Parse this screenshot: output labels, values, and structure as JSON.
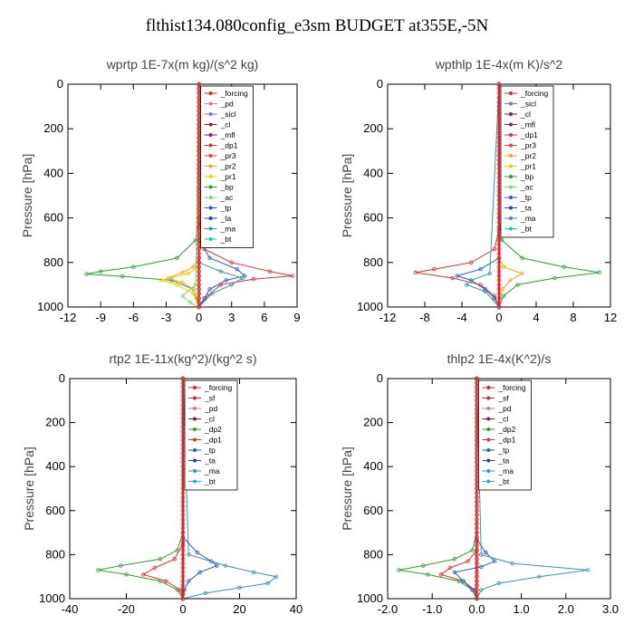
{
  "figure_title": "flthist134.080config_e3sm  BUDGET at355E,-5N",
  "colors": {
    "_forcing": "#d62728",
    "_pd": "#cc79a7",
    "_sicl": "#9467bd",
    "_cl": "#8b1a4a",
    "_mfl": "#7a1f6e",
    "_dp1": "#e03030",
    "_pr3": "#f03c3c",
    "_pr2": "#f5a623",
    "_pr1": "#e6d200",
    "_bp": "#2ca02c",
    "_ac": "#7cd66b",
    "_tp": "#1f5fbf",
    "_ta": "#1f3fbf",
    "_ma": "#3a8fb7",
    "_bt": "#17becf",
    "_sf": "#d62728",
    "_dp2": "#2ca02c"
  },
  "chart_data": [
    {
      "type": "line",
      "title": "wprtp   1E-7x(m kg)/(s^2 kg)",
      "ylabel": "Pressure [hPa]",
      "xlim": [
        -12,
        9
      ],
      "ylim": [
        1000,
        0
      ],
      "x_ticks": [
        "-12",
        "-9",
        "-6",
        "-3",
        "0",
        "3",
        "6",
        "9"
      ],
      "x_tick_values": [
        -12,
        -9,
        -6,
        -3,
        0,
        3,
        6,
        9
      ],
      "y_ticks": [
        "0",
        "200",
        "400",
        "600",
        "800",
        "1000"
      ],
      "y_tick_values": [
        0,
        200,
        400,
        600,
        800,
        1000
      ],
      "legend_position": "top-right",
      "legend": [
        "_forcing",
        "_pd",
        "_sicl",
        "_cl",
        "_mfl",
        "_dp1",
        "_pr3",
        "_pr2",
        "_pr1",
        "_bp",
        "_ac",
        "_tp",
        "_ta",
        "_ma",
        "_bt"
      ],
      "series": [
        {
          "name": "_bp",
          "p": [
            0,
            600,
            700,
            780,
            820,
            840,
            852,
            862,
            880,
            920,
            1000
          ],
          "x": [
            0,
            0,
            -0.3,
            -2,
            -6,
            -9,
            -10.3,
            -7,
            -2.5,
            -0.5,
            0
          ]
        },
        {
          "name": "_dp1",
          "p": [
            0,
            600,
            740,
            800,
            840,
            860,
            875,
            900,
            950,
            1000
          ],
          "x": [
            0,
            0,
            0.5,
            3,
            6.5,
            8.6,
            5,
            2,
            0.8,
            0
          ]
        },
        {
          "name": "_pr2",
          "p": [
            0,
            780,
            820,
            845,
            870,
            890,
            920,
            960,
            1000
          ],
          "x": [
            0,
            0,
            -0.5,
            -1.5,
            -2.8,
            -1.5,
            -0.5,
            -0.2,
            0
          ]
        },
        {
          "name": "_pr1",
          "p": [
            0,
            820,
            850,
            880,
            900,
            940,
            1000
          ],
          "x": [
            0,
            0,
            -1,
            -3.5,
            -2,
            -0.5,
            0
          ]
        },
        {
          "name": "_tp",
          "p": [
            0,
            700,
            780,
            830,
            860,
            880,
            920,
            960,
            1000
          ],
          "x": [
            0,
            0,
            1,
            3.5,
            4.2,
            2.5,
            1,
            0.5,
            0
          ]
        },
        {
          "name": "_ma",
          "p": [
            0,
            800,
            840,
            870,
            900,
            940,
            1000
          ],
          "x": [
            0,
            0,
            2,
            4,
            3,
            1.2,
            0
          ]
        },
        {
          "name": "_ac",
          "p": [
            0,
            900,
            950,
            980,
            1000
          ],
          "x": [
            0,
            -0.3,
            -1.5,
            -0.8,
            0
          ]
        },
        {
          "name": "_forcing",
          "p": [
            0,
            1000
          ],
          "x": [
            0,
            0
          ]
        }
      ]
    },
    {
      "type": "line",
      "title": "wpthlp   1E-4x(m K)/s^2",
      "ylabel": "Pressure [hPa]",
      "xlim": [
        -12,
        12
      ],
      "ylim": [
        1000,
        0
      ],
      "x_ticks": [
        "-12",
        "-8",
        "-4",
        "0",
        "4",
        "8",
        "12"
      ],
      "x_tick_values": [
        -12,
        -8,
        -4,
        0,
        4,
        8,
        12
      ],
      "y_ticks": [
        "0",
        "200",
        "400",
        "600",
        "800",
        "1000"
      ],
      "y_tick_values": [
        0,
        200,
        400,
        600,
        800,
        1000
      ],
      "legend_position": "top-right",
      "legend": [
        "_forcing",
        "_sicl",
        "_cl",
        "_mfl",
        "_dp1",
        "_pr3",
        "_pr2",
        "_pr1",
        "_bp",
        "_ac",
        "_tp",
        "_ta",
        "_ma",
        "_bt"
      ],
      "series": [
        {
          "name": "_bp",
          "p": [
            0,
            600,
            700,
            780,
            820,
            845,
            870,
            900,
            950,
            1000
          ],
          "x": [
            0,
            0,
            0.3,
            2.5,
            7,
            10.8,
            6,
            2,
            0.5,
            0
          ]
        },
        {
          "name": "_dp1",
          "p": [
            0,
            650,
            740,
            800,
            830,
            845,
            870,
            900,
            950,
            1000
          ],
          "x": [
            0,
            0,
            -0.5,
            -3,
            -7,
            -9,
            -5,
            -2,
            -0.5,
            0
          ]
        },
        {
          "name": "_pr2",
          "p": [
            0,
            780,
            820,
            850,
            880,
            920,
            960,
            1000
          ],
          "x": [
            0,
            0,
            0.5,
            2.5,
            1.2,
            0.4,
            0.1,
            0
          ]
        },
        {
          "name": "_tp",
          "p": [
            0,
            780,
            830,
            860,
            880,
            920,
            960,
            1000
          ],
          "x": [
            0,
            0,
            -2,
            -4.5,
            -3,
            -1.5,
            -0.5,
            0
          ]
        },
        {
          "name": "_ma",
          "p": [
            0,
            850,
            880,
            900,
            930,
            1000
          ],
          "x": [
            0,
            -1,
            -3,
            -3.5,
            -1.5,
            0
          ]
        },
        {
          "name": "_forcing",
          "p": [
            0,
            1000
          ],
          "x": [
            0,
            0
          ]
        }
      ]
    },
    {
      "type": "line",
      "title": "rtp2   1E-11x(kg^2)/(kg^2 s)",
      "ylabel": "Pressure [hPa]",
      "xlim": [
        -40,
        40
      ],
      "ylim": [
        1000,
        0
      ],
      "x_ticks": [
        "-40",
        "-20",
        "0",
        "20",
        "40"
      ],
      "x_tick_values": [
        -40,
        -20,
        0,
        20,
        40
      ],
      "y_ticks": [
        "0",
        "200",
        "400",
        "600",
        "800",
        "1000"
      ],
      "y_tick_values": [
        0,
        200,
        400,
        600,
        800,
        1000
      ],
      "legend_position": "top-right",
      "legend": [
        "_forcing",
        "_sf",
        "_pd",
        "_cl",
        "_dp2",
        "_dp1",
        "_tp",
        "_ta",
        "_ma",
        "_bt"
      ],
      "series": [
        {
          "name": "_dp2",
          "p": [
            0,
            700,
            780,
            820,
            850,
            870,
            890,
            920,
            960,
            1000
          ],
          "x": [
            0,
            0,
            -2,
            -8,
            -22,
            -30,
            -20,
            -8,
            -2,
            0
          ]
        },
        {
          "name": "_dp1",
          "p": [
            0,
            750,
            820,
            860,
            890,
            920,
            960,
            1000
          ],
          "x": [
            0,
            0,
            -3,
            -10,
            -14,
            -6,
            -1,
            0
          ]
        },
        {
          "name": "_tp",
          "p": [
            0,
            720,
            790,
            830,
            850,
            880,
            920,
            960,
            1000
          ],
          "x": [
            0,
            0,
            5,
            10,
            12,
            6,
            2,
            0.5,
            0
          ]
        },
        {
          "name": "_ma",
          "p": [
            0,
            800,
            850,
            880,
            900,
            930,
            950,
            975,
            1000
          ],
          "x": [
            0,
            2,
            15,
            25,
            33,
            30,
            20,
            8,
            0
          ]
        },
        {
          "name": "_forcing",
          "p": [
            0,
            1000
          ],
          "x": [
            0,
            0
          ]
        }
      ]
    },
    {
      "type": "line",
      "title": "thlp2   1E-4x(K^2)/s",
      "ylabel": "Pressure [hPa]",
      "xlim": [
        -2.0,
        3.0
      ],
      "ylim": [
        1000,
        0
      ],
      "x_ticks": [
        "-2.0",
        "-1.0",
        "0.0",
        "1.0",
        "2.0",
        "3.0"
      ],
      "x_tick_values": [
        -2.0,
        -1.0,
        0.0,
        1.0,
        2.0,
        3.0
      ],
      "y_ticks": [
        "0",
        "200",
        "400",
        "600",
        "800",
        "1000"
      ],
      "y_tick_values": [
        0,
        200,
        400,
        600,
        800,
        1000
      ],
      "legend_position": "top-right",
      "legend": [
        "_forcing",
        "_sf",
        "_pd",
        "_cl",
        "_dp2",
        "_dp1",
        "_tp",
        "_ta",
        "_ma",
        "_bt"
      ],
      "series": [
        {
          "name": "_dp2",
          "p": [
            0,
            700,
            780,
            820,
            850,
            870,
            890,
            920,
            960,
            1000
          ],
          "x": [
            0,
            0,
            -0.1,
            -0.5,
            -1.2,
            -1.75,
            -1.1,
            -0.4,
            -0.1,
            0
          ]
        },
        {
          "name": "_dp1",
          "p": [
            0,
            780,
            830,
            860,
            890,
            920,
            960,
            1000
          ],
          "x": [
            0,
            0,
            -0.2,
            -0.6,
            -0.8,
            -0.3,
            -0.05,
            0
          ]
        },
        {
          "name": "_tp",
          "p": [
            0,
            730,
            790,
            830,
            855,
            880,
            920,
            960,
            1000
          ],
          "x": [
            0,
            0,
            0.2,
            0.4,
            0.1,
            -0.5,
            -0.3,
            -0.1,
            0
          ]
        },
        {
          "name": "_ma",
          "p": [
            0,
            800,
            840,
            870,
            900,
            930,
            960,
            1000
          ],
          "x": [
            0,
            0.1,
            0.8,
            2.5,
            1.4,
            0.5,
            0.1,
            0
          ]
        },
        {
          "name": "_forcing",
          "p": [
            0,
            1000
          ],
          "x": [
            0,
            0
          ]
        }
      ]
    }
  ]
}
